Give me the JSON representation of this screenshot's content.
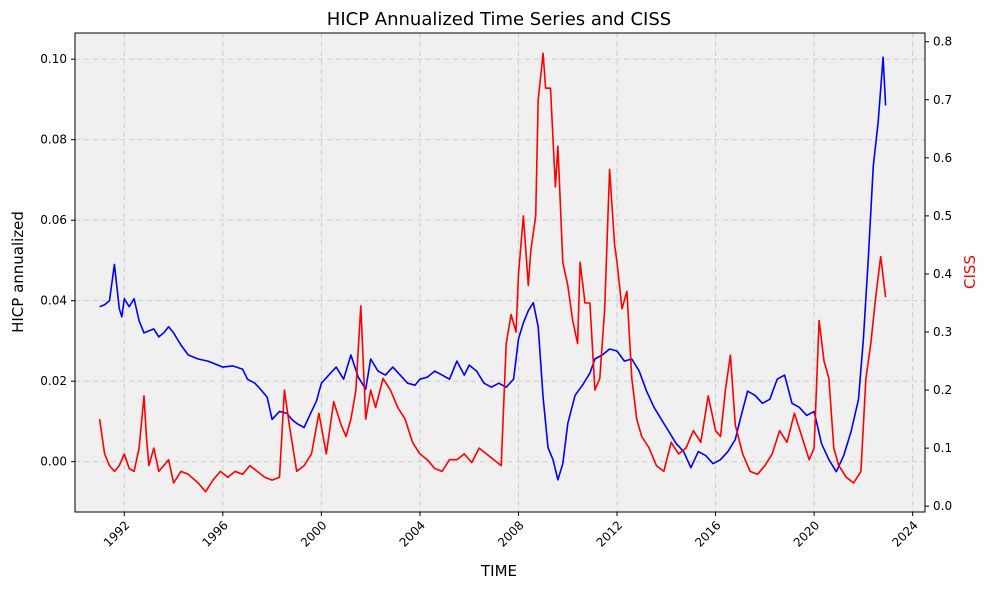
{
  "chart_data": {
    "type": "line",
    "title": "HICP Annualized Time Series and CISS",
    "xlabel": "TIME",
    "ylabel_left": "HICP annualized",
    "ylabel_right": "CISS",
    "xlim": [
      1990.0,
      2024.5
    ],
    "ylim_left": [
      -0.0125,
      0.1065
    ],
    "ylim_right": [
      -0.01,
      0.815
    ],
    "x_ticks": [
      1992,
      1996,
      2000,
      2004,
      2008,
      2012,
      2016,
      2020,
      2024
    ],
    "y_ticks_left": [
      0.0,
      0.02,
      0.04,
      0.06,
      0.08,
      0.1
    ],
    "y_ticks_left_labels": [
      "0.00",
      "0.02",
      "0.04",
      "0.06",
      "0.08",
      "0.10"
    ],
    "y_ticks_right": [
      0.0,
      0.1,
      0.2,
      0.3,
      0.4,
      0.5,
      0.6,
      0.7,
      0.8
    ],
    "y_ticks_right_labels": [
      "0.0",
      "0.1",
      "0.2",
      "0.3",
      "0.4",
      "0.5",
      "0.6",
      "0.7",
      "0.8"
    ],
    "grid": true,
    "legend": "none",
    "colors": {
      "hicp": "#0000ff",
      "ciss": "#ff0000",
      "plot_bg": "#f0f0f0",
      "grid": "#c8c8c8"
    },
    "series": [
      {
        "key": "hicp",
        "axis": "left",
        "x": [
          1991.0,
          1991.2,
          1991.4,
          1991.6,
          1991.8,
          1991.9,
          1992.0,
          1992.2,
          1992.4,
          1992.6,
          1992.8,
          1993.0,
          1993.2,
          1993.4,
          1993.6,
          1993.8,
          1994.0,
          1994.3,
          1994.6,
          1995.0,
          1995.4,
          1995.8,
          1996.0,
          1996.4,
          1996.8,
          1997.0,
          1997.3,
          1997.6,
          1997.8,
          1998.0,
          1998.3,
          1998.6,
          1998.8,
          1999.0,
          1999.3,
          1999.6,
          1999.8,
          2000.0,
          2000.3,
          2000.6,
          2000.9,
          2001.2,
          2001.5,
          2001.8,
          2002.0,
          2002.3,
          2002.6,
          2002.9,
          2003.2,
          2003.5,
          2003.8,
          2004.0,
          2004.3,
          2004.6,
          2004.9,
          2005.2,
          2005.5,
          2005.8,
          2006.0,
          2006.3,
          2006.6,
          2006.9,
          2007.2,
          2007.5,
          2007.8,
          2008.0,
          2008.2,
          2008.4,
          2008.6,
          2008.8,
          2009.0,
          2009.2,
          2009.4,
          2009.6,
          2009.8,
          2010.0,
          2010.3,
          2010.6,
          2010.9,
          2011.1,
          2011.4,
          2011.7,
          2012.0,
          2012.3,
          2012.6,
          2012.9,
          2013.2,
          2013.5,
          2013.8,
          2014.1,
          2014.4,
          2014.7,
          2015.0,
          2015.3,
          2015.6,
          2015.9,
          2016.2,
          2016.5,
          2016.8,
          2017.0,
          2017.3,
          2017.6,
          2017.9,
          2018.2,
          2018.5,
          2018.8,
          2019.1,
          2019.4,
          2019.7,
          2020.0,
          2020.3,
          2020.6,
          2020.9,
          2021.2,
          2021.5,
          2021.8,
          2022.0,
          2022.2,
          2022.4,
          2022.6,
          2022.8,
          2022.9
        ],
        "y": [
          0.0385,
          0.039,
          0.04,
          0.049,
          0.038,
          0.036,
          0.0405,
          0.0385,
          0.0405,
          0.035,
          0.032,
          0.0325,
          0.033,
          0.031,
          0.032,
          0.0335,
          0.032,
          0.029,
          0.0265,
          0.0255,
          0.025,
          0.024,
          0.0235,
          0.0238,
          0.023,
          0.0205,
          0.0195,
          0.0175,
          0.016,
          0.0105,
          0.0125,
          0.012,
          0.0105,
          0.0095,
          0.0085,
          0.0125,
          0.015,
          0.0195,
          0.0215,
          0.0235,
          0.0205,
          0.0265,
          0.021,
          0.018,
          0.0255,
          0.0225,
          0.0215,
          0.0235,
          0.0215,
          0.0195,
          0.019,
          0.0205,
          0.021,
          0.0225,
          0.0215,
          0.0205,
          0.025,
          0.0215,
          0.024,
          0.0225,
          0.0195,
          0.0185,
          0.0195,
          0.0185,
          0.0205,
          0.0305,
          0.0345,
          0.0375,
          0.0395,
          0.0335,
          0.016,
          0.0035,
          0.0005,
          -0.0045,
          -0.0005,
          0.0095,
          0.0165,
          0.019,
          0.022,
          0.0255,
          0.0265,
          0.028,
          0.0275,
          0.025,
          0.0255,
          0.0225,
          0.0175,
          0.0135,
          0.0105,
          0.0075,
          0.0045,
          0.0025,
          -0.0015,
          0.0025,
          0.0015,
          -0.0005,
          0.0005,
          0.0025,
          0.0055,
          0.0105,
          0.0175,
          0.0165,
          0.0145,
          0.0155,
          0.0205,
          0.0215,
          0.0145,
          0.0135,
          0.0115,
          0.0125,
          0.0045,
          0.0005,
          -0.0025,
          0.0015,
          0.0075,
          0.0155,
          0.0305,
          0.0505,
          0.0735,
          0.0845,
          0.1005,
          0.0885
        ]
      },
      {
        "key": "ciss",
        "axis": "right",
        "x": [
          1991.0,
          1991.2,
          1991.4,
          1991.6,
          1991.8,
          1992.0,
          1992.2,
          1992.4,
          1992.6,
          1992.8,
          1992.9,
          1993.0,
          1993.2,
          1993.4,
          1993.6,
          1993.8,
          1994.0,
          1994.3,
          1994.6,
          1995.0,
          1995.3,
          1995.6,
          1995.9,
          1996.2,
          1996.5,
          1996.8,
          1997.1,
          1997.4,
          1997.7,
          1998.0,
          1998.3,
          1998.5,
          1998.7,
          1999.0,
          1999.3,
          1999.6,
          1999.9,
          2000.2,
          2000.5,
          2000.8,
          2001.0,
          2001.2,
          2001.4,
          2001.6,
          2001.8,
          2002.0,
          2002.2,
          2002.5,
          2002.8,
          2003.1,
          2003.4,
          2003.7,
          2004.0,
          2004.3,
          2004.6,
          2004.9,
          2005.2,
          2005.5,
          2005.8,
          2006.1,
          2006.4,
          2006.7,
          2007.0,
          2007.3,
          2007.5,
          2007.7,
          2007.9,
          2008.0,
          2008.2,
          2008.4,
          2008.5,
          2008.7,
          2008.8,
          2009.0,
          2009.1,
          2009.3,
          2009.5,
          2009.6,
          2009.8,
          2010.0,
          2010.2,
          2010.4,
          2010.5,
          2010.7,
          2010.9,
          2011.1,
          2011.3,
          2011.5,
          2011.7,
          2011.9,
          2012.0,
          2012.2,
          2012.4,
          2012.6,
          2012.8,
          2013.0,
          2013.3,
          2013.6,
          2013.9,
          2014.2,
          2014.5,
          2014.8,
          2015.1,
          2015.4,
          2015.7,
          2016.0,
          2016.2,
          2016.4,
          2016.6,
          2016.8,
          2017.1,
          2017.4,
          2017.7,
          2018.0,
          2018.3,
          2018.6,
          2018.9,
          2019.2,
          2019.5,
          2019.8,
          2020.0,
          2020.2,
          2020.4,
          2020.6,
          2020.8,
          2021.0,
          2021.3,
          2021.6,
          2021.9,
          2022.1,
          2022.3,
          2022.5,
          2022.7,
          2022.9
        ],
        "y": [
          0.15,
          0.09,
          0.07,
          0.06,
          0.07,
          0.09,
          0.065,
          0.06,
          0.1,
          0.19,
          0.12,
          0.07,
          0.1,
          0.06,
          0.07,
          0.08,
          0.04,
          0.06,
          0.055,
          0.04,
          0.025,
          0.045,
          0.06,
          0.05,
          0.06,
          0.055,
          0.07,
          0.06,
          0.05,
          0.045,
          0.05,
          0.2,
          0.14,
          0.06,
          0.07,
          0.09,
          0.16,
          0.09,
          0.18,
          0.14,
          0.12,
          0.15,
          0.2,
          0.345,
          0.15,
          0.2,
          0.17,
          0.22,
          0.2,
          0.17,
          0.15,
          0.11,
          0.09,
          0.08,
          0.065,
          0.06,
          0.08,
          0.08,
          0.09,
          0.075,
          0.1,
          0.09,
          0.08,
          0.07,
          0.28,
          0.33,
          0.3,
          0.4,
          0.5,
          0.38,
          0.44,
          0.5,
          0.7,
          0.78,
          0.72,
          0.72,
          0.55,
          0.62,
          0.42,
          0.38,
          0.32,
          0.28,
          0.42,
          0.35,
          0.35,
          0.2,
          0.22,
          0.34,
          0.58,
          0.45,
          0.42,
          0.34,
          0.37,
          0.22,
          0.15,
          0.12,
          0.1,
          0.07,
          0.06,
          0.11,
          0.09,
          0.1,
          0.13,
          0.11,
          0.19,
          0.13,
          0.12,
          0.2,
          0.26,
          0.14,
          0.09,
          0.06,
          0.055,
          0.07,
          0.09,
          0.13,
          0.11,
          0.16,
          0.12,
          0.08,
          0.1,
          0.32,
          0.25,
          0.22,
          0.1,
          0.07,
          0.05,
          0.04,
          0.06,
          0.22,
          0.28,
          0.36,
          0.43,
          0.36
        ]
      }
    ]
  }
}
